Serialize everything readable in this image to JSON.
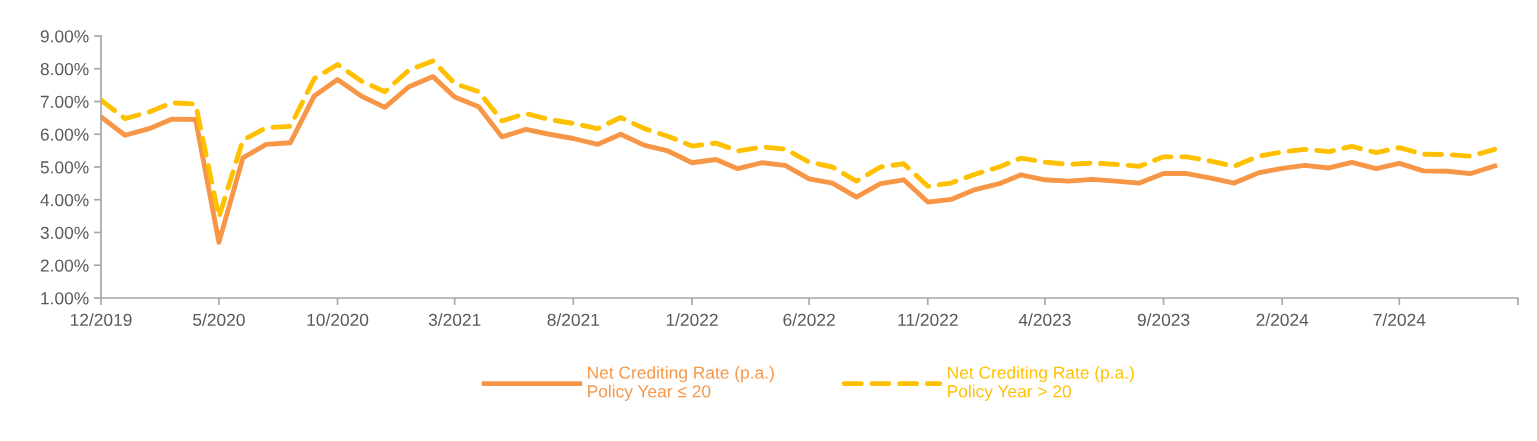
{
  "chart_data": {
    "type": "line",
    "x": [
      "2019-12",
      "2020-01",
      "2020-02",
      "2020-03",
      "2020-04",
      "2020-05",
      "2020-06",
      "2020-07",
      "2020-08",
      "2020-09",
      "2020-10",
      "2020-11",
      "2020-12",
      "2021-01",
      "2021-02",
      "2021-03",
      "2021-04",
      "2021-05",
      "2021-06",
      "2021-07",
      "2021-08",
      "2021-09",
      "2021-10",
      "2021-11",
      "2021-12",
      "2022-01",
      "2022-02",
      "2022-03",
      "2022-04",
      "2022-05",
      "2022-06",
      "2022-07",
      "2022-08",
      "2022-09",
      "2022-10",
      "2022-11",
      "2022-12",
      "2023-01",
      "2023-02",
      "2023-03",
      "2023-04",
      "2023-05",
      "2023-06",
      "2023-07",
      "2023-08",
      "2023-09",
      "2023-10",
      "2023-11",
      "2023-12",
      "2024-01",
      "2024-02",
      "2024-03",
      "2024-04",
      "2024-05",
      "2024-06",
      "2024-07",
      "2024-08",
      "2024-09",
      "2024-10",
      "2024-11"
    ],
    "series": [
      {
        "name": "Net Crediting Rate (p.a.)\nPolicy Year ≤ 20",
        "color": "#f79646",
        "line_style": "solid",
        "values": [
          6.53,
          5.97,
          6.17,
          6.46,
          6.45,
          2.7,
          5.28,
          5.69,
          5.74,
          7.17,
          7.67,
          7.16,
          6.82,
          7.45,
          7.76,
          7.14,
          6.84,
          5.92,
          6.15,
          6.0,
          5.87,
          5.69,
          6.0,
          5.66,
          5.49,
          5.13,
          5.23,
          4.95,
          5.13,
          5.05,
          4.64,
          4.51,
          4.08,
          4.49,
          4.61,
          3.93,
          4.01,
          4.31,
          4.49,
          4.76,
          4.61,
          4.57,
          4.62,
          4.57,
          4.51,
          4.8,
          4.8,
          4.66,
          4.51,
          4.82,
          4.96,
          5.05,
          4.97,
          5.14,
          4.95,
          5.11,
          4.88,
          4.87,
          4.8,
          5.03
        ]
      },
      {
        "name": "Net Crediting Rate (p.a.)\nPolicy Year > 20",
        "color": "#ffc000",
        "line_style": "dashed",
        "values": [
          7.04,
          6.48,
          6.68,
          6.96,
          6.92,
          3.47,
          5.82,
          6.2,
          6.24,
          7.7,
          8.13,
          7.62,
          7.3,
          7.96,
          8.24,
          7.55,
          7.3,
          6.41,
          6.63,
          6.45,
          6.33,
          6.17,
          6.51,
          6.17,
          5.94,
          5.64,
          5.73,
          5.49,
          5.61,
          5.55,
          5.15,
          5.0,
          4.57,
          5.0,
          5.1,
          4.41,
          4.51,
          4.78,
          5.0,
          5.27,
          5.15,
          5.08,
          5.12,
          5.08,
          5.02,
          5.31,
          5.31,
          5.18,
          5.02,
          5.33,
          5.46,
          5.54,
          5.47,
          5.63,
          5.44,
          5.59,
          5.39,
          5.38,
          5.33,
          5.54
        ]
      }
    ],
    "xlim": [
      "2019-12",
      "2024-12"
    ],
    "xticks": [
      {
        "value": "2019-12",
        "label": "12/2019"
      },
      {
        "value": "2020-05",
        "label": "5/2020"
      },
      {
        "value": "2020-10",
        "label": "10/2020"
      },
      {
        "value": "2021-03",
        "label": "3/2021"
      },
      {
        "value": "2021-08",
        "label": "8/2021"
      },
      {
        "value": "2022-01",
        "label": "1/2022"
      },
      {
        "value": "2022-06",
        "label": "6/2022"
      },
      {
        "value": "2022-11",
        "label": "11/2022"
      },
      {
        "value": "2023-04",
        "label": "4/2023"
      },
      {
        "value": "2023-09",
        "label": "9/2023"
      },
      {
        "value": "2024-02",
        "label": "2/2024"
      },
      {
        "value": "2024-07",
        "label": "7/2024"
      },
      {
        "value": "2024-12",
        "label": null
      }
    ],
    "ylim": [
      1,
      9
    ],
    "yticks": [
      {
        "value": 1,
        "label": "1.00%"
      },
      {
        "value": 2,
        "label": "2.00%"
      },
      {
        "value": 3,
        "label": "3.00%"
      },
      {
        "value": 4,
        "label": "4.00%"
      },
      {
        "value": 5,
        "label": "5.00%"
      },
      {
        "value": 6,
        "label": "6.00%"
      },
      {
        "value": 7,
        "label": "7.00%"
      },
      {
        "value": 8,
        "label": "8.00%"
      },
      {
        "value": 9,
        "label": "9.00%"
      }
    ],
    "grid": false,
    "legend": "bottom",
    "marker": "none"
  }
}
